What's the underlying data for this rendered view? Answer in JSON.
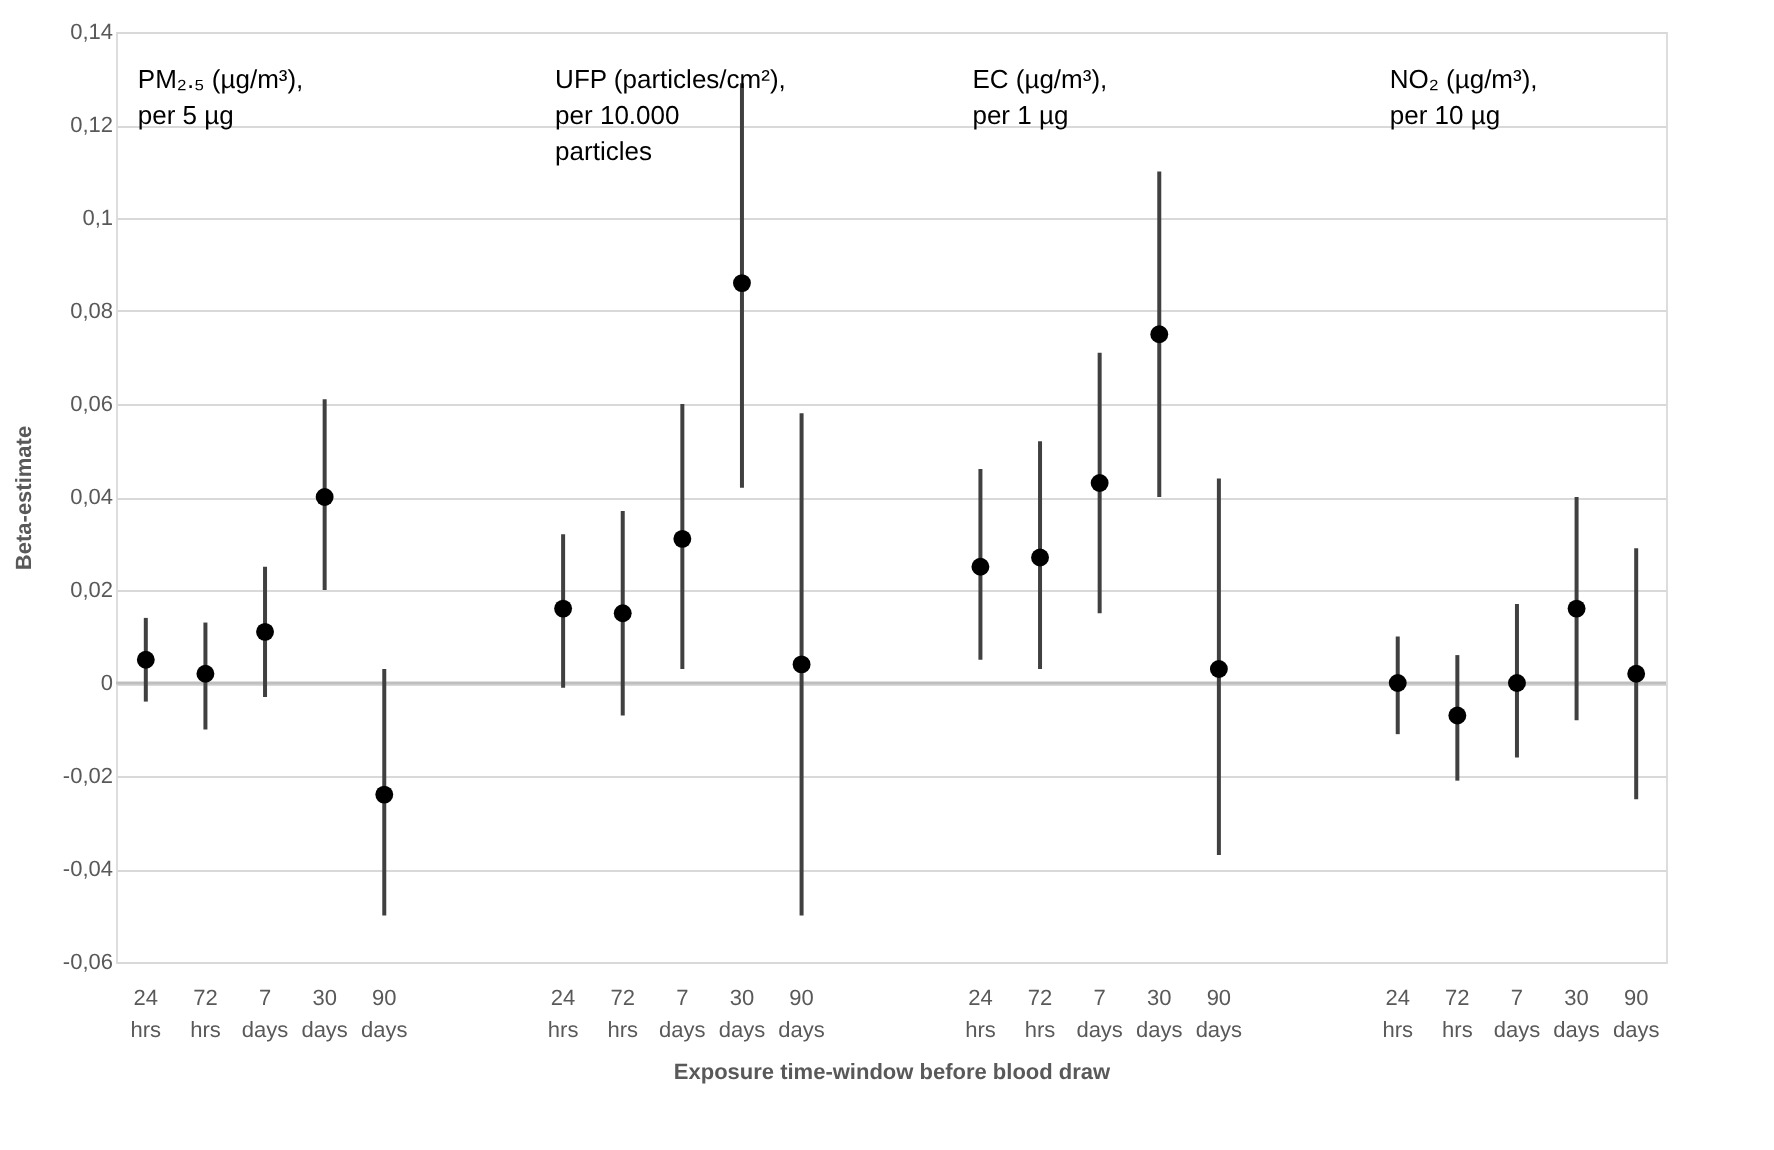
{
  "chart_data": {
    "type": "scatter",
    "xlabel": "Exposure time-window before blood draw",
    "ylabel": "Beta-estimate",
    "categories": [
      "24 hrs",
      "72 hrs",
      "7 days",
      "30 days",
      "90 days",
      null,
      null,
      "24 hrs",
      "72 hrs",
      "7 days",
      "30 days",
      "90 days",
      null,
      null,
      "24 hrs",
      "72 hrs",
      "7 days",
      "30 days",
      "90 days",
      null,
      null,
      "24 hrs",
      "72 hrs",
      "7 days",
      "30 days",
      "90 days"
    ],
    "series": [
      {
        "color": "#000000",
        "values": [
          0.005,
          0.002,
          0.011,
          0.04,
          -0.024,
          null,
          null,
          0.016,
          0.015,
          0.031,
          0.086,
          0.004,
          null,
          null,
          0.025,
          0.027,
          0.043,
          0.075,
          0.003,
          null,
          null,
          0.0,
          -0.007,
          0.0,
          0.016,
          0.002
        ],
        "errors": [
          [
            -0.004,
            0.014
          ],
          [
            -0.01,
            0.013
          ],
          [
            -0.003,
            0.025
          ],
          [
            0.02,
            0.061
          ],
          [
            -0.05,
            0.003
          ],
          null,
          null,
          [
            -0.001,
            0.032
          ],
          [
            -0.007,
            0.037
          ],
          [
            0.003,
            0.06
          ],
          [
            0.042,
            0.129
          ],
          [
            -0.05,
            0.058
          ],
          null,
          null,
          [
            0.005,
            0.046
          ],
          [
            0.003,
            0.052
          ],
          [
            0.015,
            0.071
          ],
          [
            0.04,
            0.11
          ],
          [
            -0.037,
            0.044
          ],
          null,
          null,
          [
            -0.011,
            0.01
          ],
          [
            -0.021,
            0.006
          ],
          [
            -0.016,
            0.017
          ],
          [
            -0.008,
            0.04
          ],
          [
            -0.025,
            0.029
          ]
        ]
      }
    ],
    "ylim": [
      -0.06,
      0.14
    ],
    "yticks": [
      {
        "value": -0.06,
        "label": "-0,06"
      },
      {
        "value": -0.04,
        "label": "-0,04"
      },
      {
        "value": -0.02,
        "label": "-0,02"
      },
      {
        "value": 0,
        "label": "0"
      },
      {
        "value": 0.02,
        "label": "0,02"
      },
      {
        "value": 0.04,
        "label": "0,04"
      },
      {
        "value": 0.06,
        "label": "0,06"
      },
      {
        "value": 0.08,
        "label": "0,08"
      },
      {
        "value": 0.1,
        "label": "0,1"
      },
      {
        "value": 0.12,
        "label": "0,12"
      },
      {
        "value": 0.14,
        "label": "0,14"
      }
    ],
    "ref_lines": [
      {
        "axis": "y",
        "value": 0,
        "color": "#bfbfbf"
      }
    ],
    "annotations": [
      "PM₂.₅ (µg/m³),\nper 5 µg",
      "UFP (particles/cm²),\nper 10.000\nparticles",
      "EC (µg/m³),\nper 1 µg",
      "NO₂ (µg/m³),\nper 10 µg"
    ],
    "grid": "y",
    "marker": "circle"
  }
}
